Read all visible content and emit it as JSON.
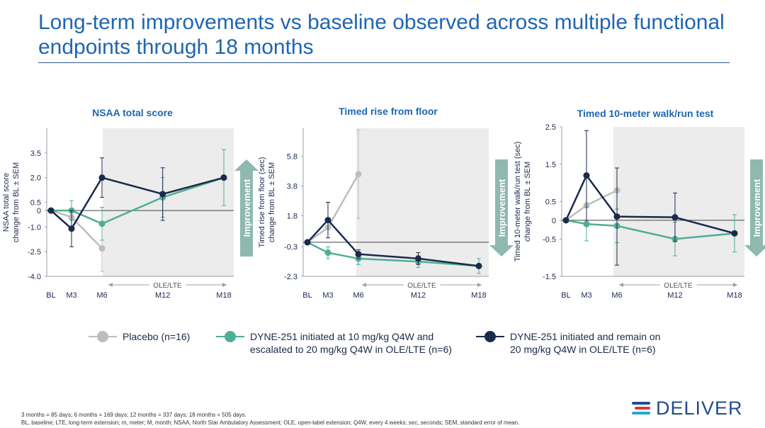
{
  "title": "Long-term improvements vs baseline observed across multiple functional endpoints through 18 months",
  "colors": {
    "placebo": "#bdbdbd",
    "escalated": "#4daf94",
    "remain": "#1b2a4a",
    "title": "#1f66b1",
    "shade": "#ececec",
    "arrow": "#8fb9ae"
  },
  "improvement_label": "Improvement",
  "ole_label": "OLE/LTE",
  "chart_data": [
    {
      "type": "line",
      "title": "NSAA total score",
      "ylabel": [
        "NSAA total score",
        "change from BL ± SEM"
      ],
      "categories": [
        "BL",
        "M3",
        "M6",
        "M12",
        "M18"
      ],
      "x": [
        0,
        3,
        6,
        12,
        18
      ],
      "ylim": [
        -4.0,
        5.0
      ],
      "yticks": [
        -4.0,
        -2.5,
        -1.0,
        0,
        0.5,
        2.0,
        3.5
      ],
      "ytick_labels": [
        "-4.0",
        "-2.5",
        "-1.0",
        "0",
        "0.5",
        "2.0",
        "3.5"
      ],
      "arrow_direction": "up",
      "series": [
        {
          "name": "Placebo (n=16)",
          "key": "placebo",
          "x": [
            0,
            3,
            6
          ],
          "y": [
            0,
            -0.4,
            -2.3
          ],
          "err": [
            0,
            0,
            1.4
          ]
        },
        {
          "name": "DYNE-251 initiated at 10 mg/kg Q4W and escalated to 20 mg/kg Q4W in OLE/LTE (n=6)",
          "key": "escalated",
          "x": [
            0,
            3,
            6,
            12,
            18
          ],
          "y": [
            0,
            0,
            -0.8,
            0.8,
            2.0
          ],
          "err": [
            0,
            0.6,
            1.0,
            1.2,
            1.7
          ]
        },
        {
          "name": "DYNE-251 initiated and remain on 20 mg/kg Q4W in OLE/LTE (n=6)",
          "key": "remain",
          "x": [
            0,
            3,
            6,
            12,
            18
          ],
          "y": [
            0,
            -1.1,
            2.0,
            1.0,
            2.0
          ],
          "err": [
            0,
            1.1,
            1.2,
            1.6,
            0
          ]
        }
      ]
    },
    {
      "type": "line",
      "title": "Timed rise from floor",
      "ylabel": [
        "Timed rise from floor (sec)",
        "change from BL ± SEM"
      ],
      "categories": [
        "BL",
        "M3",
        "M6",
        "M12",
        "M18"
      ],
      "x": [
        0,
        3,
        6,
        12,
        18
      ],
      "ylim": [
        -2.3,
        7.7
      ],
      "yticks": [
        -2.3,
        -0.3,
        1.8,
        3.8,
        5.8
      ],
      "ytick_labels": [
        "-2.3",
        "-0.3",
        "1.8",
        "3.8",
        "5.8"
      ],
      "arrow_direction": "down",
      "series": [
        {
          "name": "Placebo (n=16)",
          "key": "placebo",
          "x": [
            0,
            3,
            6
          ],
          "y": [
            0,
            1.0,
            4.6
          ],
          "err": [
            0,
            0,
            3.0
          ]
        },
        {
          "name": "DYNE-251 initiated at 10 mg/kg Q4W and escalated to 20 mg/kg Q4W in OLE/LTE (n=6)",
          "key": "escalated",
          "x": [
            0,
            3,
            6,
            12,
            18
          ],
          "y": [
            0,
            -0.7,
            -1.1,
            -1.3,
            -1.6
          ],
          "err": [
            0,
            0.4,
            0.4,
            0.4,
            0.5
          ]
        },
        {
          "name": "DYNE-251 initiated and remain on 20 mg/kg Q4W in OLE/LTE (n=6)",
          "key": "remain",
          "x": [
            0,
            3,
            6,
            12,
            18
          ],
          "y": [
            0,
            1.5,
            -0.8,
            -1.1,
            -1.6
          ],
          "err": [
            0,
            1.2,
            0.3,
            0.4,
            0
          ]
        }
      ]
    },
    {
      "type": "line",
      "title": "Timed 10-meter walk/run test",
      "ylabel": [
        "Timed 10-meter walk/run test (sec)",
        "change from BL ± SEM"
      ],
      "categories": [
        "BL",
        "M3",
        "M6",
        "M12",
        "M18"
      ],
      "x": [
        0,
        3,
        6,
        12,
        18
      ],
      "ylim": [
        -1.5,
        2.5
      ],
      "yticks": [
        -1.5,
        -0.5,
        0,
        0.5,
        1.5,
        2.5
      ],
      "ytick_labels": [
        "-1.5",
        "-0.5",
        "0",
        "0.5",
        "1.5",
        "2.5"
      ],
      "arrow_direction": "down",
      "series": [
        {
          "name": "Placebo (n=16)",
          "key": "placebo",
          "x": [
            0,
            3,
            6
          ],
          "y": [
            0,
            0.4,
            0.8
          ],
          "err": [
            0,
            0,
            0
          ]
        },
        {
          "name": "DYNE-251 initiated at 10 mg/kg Q4W and escalated to 20 mg/kg Q4W in OLE/LTE (n=6)",
          "key": "escalated",
          "x": [
            0,
            3,
            6,
            12,
            18
          ],
          "y": [
            0,
            -0.1,
            -0.15,
            -0.5,
            -0.35
          ],
          "err": [
            0,
            0.45,
            0.45,
            0.45,
            0.5
          ]
        },
        {
          "name": "DYNE-251 initiated and remain on 20 mg/kg Q4W in OLE/LTE (n=6)",
          "key": "remain",
          "x": [
            0,
            3,
            6,
            12,
            18
          ],
          "y": [
            0,
            1.2,
            0.1,
            0.08,
            -0.35
          ],
          "err": [
            0,
            1.2,
            1.3,
            0.65,
            0
          ]
        }
      ]
    }
  ],
  "legend": [
    {
      "key": "placebo",
      "label": "Placebo (n=16)"
    },
    {
      "key": "escalated",
      "label": "DYNE-251 initiated at 10 mg/kg Q4W and escalated to 20 mg/kg Q4W in OLE/LTE (n=6)"
    },
    {
      "key": "remain",
      "label": "DYNE-251 initiated and remain on 20 mg/kg Q4W in OLE/LTE (n=6)"
    }
  ],
  "legend_lines": {
    "placebo": [
      "Placebo (n=16)"
    ],
    "escalated": [
      "DYNE-251 initiated at 10 mg/kg Q4W and",
      "escalated to 20 mg/kg Q4W in OLE/LTE (n=6)"
    ],
    "remain": [
      "DYNE-251 initiated and remain on",
      "20 mg/kg Q4W in OLE/LTE (n=6)"
    ]
  },
  "footnotes": [
    "3 months = 85 days; 6 months = 169 days; 12 months = 337 days; 18 months = 505 days.",
    "BL, baseline; LTE, long-term extension; m, meter; M, month; NSAA, North Star Ambulatory Assessment; OLE, open-label extension; Q4W, every 4 weeks; sec, seconds; SEM, standard error of mean."
  ],
  "logo": {
    "text": "DELIVER",
    "bar_colors": [
      "#1f4e8c",
      "#d23b3b",
      "#2aa7c9"
    ]
  }
}
